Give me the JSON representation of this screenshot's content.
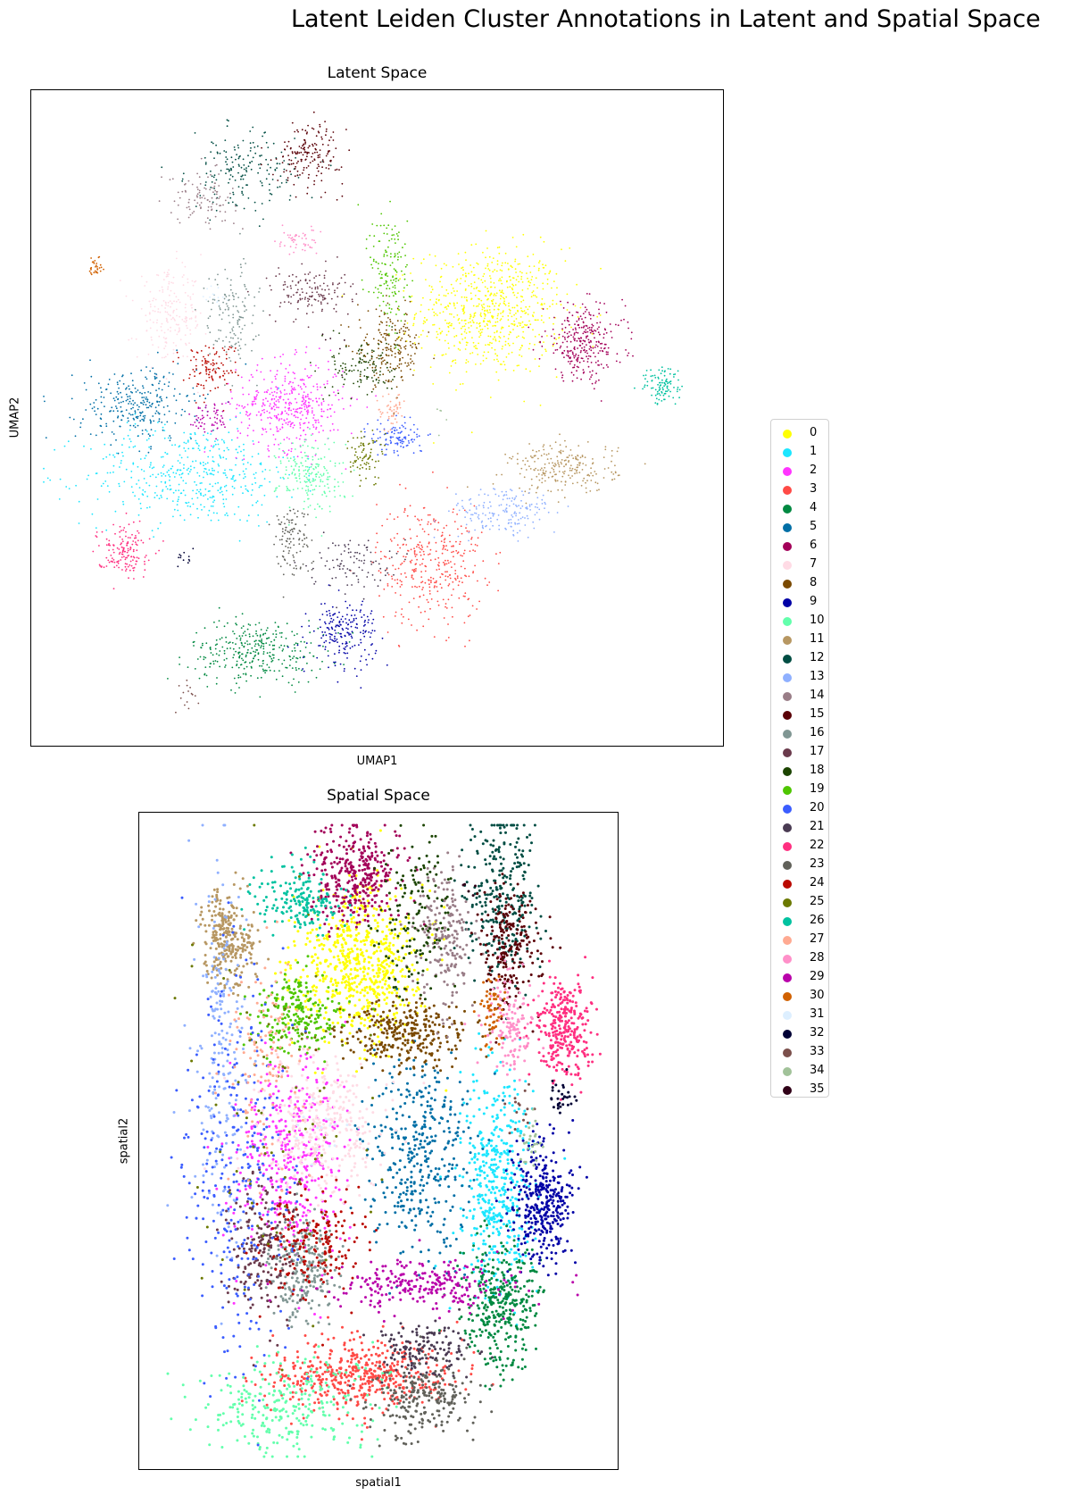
{
  "title": "Latent Leiden Cluster Annotations in Latent and Spatial Space",
  "chart_data": [
    {
      "type": "scatter",
      "title": "Latent Space",
      "xlabel": "UMAP1",
      "ylabel": "UMAP2",
      "ticks": "none",
      "grid": false,
      "xlim": [
        0,
        100
      ],
      "ylim": [
        0,
        100
      ],
      "note": "approximate cluster centers (UMAP1, UMAP2) and spread; axes unlabeled",
      "clusters": [
        {
          "id": 0,
          "x": 67,
          "y": 67,
          "sx": 5.5,
          "sy": 5,
          "n": 700
        },
        {
          "id": 1,
          "x": 22,
          "y": 41,
          "sx": 8,
          "sy": 4,
          "n": 450
        },
        {
          "id": 2,
          "x": 37,
          "y": 52,
          "sx": 4,
          "sy": 3.5,
          "n": 420
        },
        {
          "id": 3,
          "x": 58,
          "y": 27,
          "sx": 4,
          "sy": 5,
          "n": 350
        },
        {
          "id": 4,
          "x": 32,
          "y": 13,
          "sx": 5,
          "sy": 2.5,
          "n": 320
        },
        {
          "id": 5,
          "x": 14,
          "y": 52,
          "sx": 4.5,
          "sy": 3,
          "n": 280
        },
        {
          "id": 6,
          "x": 81,
          "y": 62,
          "sx": 3,
          "sy": 3,
          "n": 300
        },
        {
          "id": 7,
          "x": 19,
          "y": 66,
          "sx": 2.5,
          "sy": 3.5,
          "n": 200
        },
        {
          "id": 8,
          "x": 52,
          "y": 61,
          "sx": 2.5,
          "sy": 3,
          "n": 200
        },
        {
          "id": 9,
          "x": 45,
          "y": 16,
          "sx": 2.5,
          "sy": 2.5,
          "n": 200
        },
        {
          "id": 10,
          "x": 40,
          "y": 41,
          "sx": 2.5,
          "sy": 3,
          "n": 200
        },
        {
          "id": 11,
          "x": 78,
          "y": 42,
          "sx": 4,
          "sy": 2,
          "n": 230
        },
        {
          "id": 12,
          "x": 30,
          "y": 89,
          "sx": 4,
          "sy": 3,
          "n": 180
        },
        {
          "id": 13,
          "x": 69,
          "y": 35,
          "sx": 4,
          "sy": 2,
          "n": 170
        },
        {
          "id": 14,
          "x": 24,
          "y": 85,
          "sx": 2.5,
          "sy": 2,
          "n": 100
        },
        {
          "id": 15,
          "x": 40,
          "y": 92,
          "sx": 2.5,
          "sy": 2.5,
          "n": 170
        },
        {
          "id": 16,
          "x": 28,
          "y": 66,
          "sx": 2,
          "sy": 4,
          "n": 140
        },
        {
          "id": 17,
          "x": 40,
          "y": 70,
          "sx": 3,
          "sy": 2,
          "n": 140
        },
        {
          "id": 18,
          "x": 48,
          "y": 58,
          "sx": 2.5,
          "sy": 2.5,
          "n": 120
        },
        {
          "id": 19,
          "x": 52,
          "y": 73,
          "sx": 1.5,
          "sy": 5,
          "n": 150
        },
        {
          "id": 20,
          "x": 53,
          "y": 47,
          "sx": 2,
          "sy": 1.5,
          "n": 110
        },
        {
          "id": 21,
          "x": 46,
          "y": 27,
          "sx": 3,
          "sy": 2,
          "n": 100
        },
        {
          "id": 22,
          "x": 12,
          "y": 29,
          "sx": 2,
          "sy": 2,
          "n": 150
        },
        {
          "id": 23,
          "x": 37,
          "y": 31,
          "sx": 1.5,
          "sy": 3,
          "n": 110
        },
        {
          "id": 24,
          "x": 25,
          "y": 58,
          "sx": 2,
          "sy": 2,
          "n": 110
        },
        {
          "id": 25,
          "x": 48,
          "y": 44,
          "sx": 1.5,
          "sy": 2,
          "n": 80
        },
        {
          "id": 26,
          "x": 93,
          "y": 55,
          "sx": 1.5,
          "sy": 1.5,
          "n": 100
        },
        {
          "id": 27,
          "x": 52,
          "y": 51,
          "sx": 1,
          "sy": 1.5,
          "n": 50
        },
        {
          "id": 28,
          "x": 38,
          "y": 78,
          "sx": 1.5,
          "sy": 1,
          "n": 50
        },
        {
          "id": 29,
          "x": 25,
          "y": 50,
          "sx": 1.5,
          "sy": 1.5,
          "n": 60
        },
        {
          "id": 30,
          "x": 8,
          "y": 74,
          "sx": 0.6,
          "sy": 1,
          "n": 30
        },
        {
          "id": 31,
          "x": 26,
          "y": 69,
          "sx": 1,
          "sy": 1,
          "n": 15
        },
        {
          "id": 32,
          "x": 21,
          "y": 28,
          "sx": 0.6,
          "sy": 0.6,
          "n": 12
        },
        {
          "id": 33,
          "x": 22,
          "y": 6,
          "sx": 1,
          "sy": 1.5,
          "n": 15
        },
        {
          "id": 34,
          "x": 60,
          "y": 50,
          "sx": 1,
          "sy": 1,
          "n": 5
        },
        {
          "id": 35,
          "x": 43,
          "y": 62,
          "sx": 1,
          "sy": 1,
          "n": 5
        }
      ]
    },
    {
      "type": "scatter",
      "title": "Spatial Space",
      "xlabel": "spatial1",
      "ylabel": "spatial2",
      "ticks": "none",
      "grid": false,
      "xlim": [
        0,
        100
      ],
      "ylim": [
        0,
        100
      ],
      "note": "approximate cluster centers (spatial1, spatial2) and spread; axes unlabeled",
      "clusters": [
        {
          "id": 0,
          "x": 46,
          "y": 78,
          "sx": 7,
          "sy": 6,
          "n": 650
        },
        {
          "id": 1,
          "x": 76,
          "y": 43,
          "sx": 4,
          "sy": 9,
          "n": 450
        },
        {
          "id": 2,
          "x": 30,
          "y": 48,
          "sx": 6,
          "sy": 8,
          "n": 380
        },
        {
          "id": 3,
          "x": 46,
          "y": 13,
          "sx": 10,
          "sy": 3,
          "n": 500
        },
        {
          "id": 4,
          "x": 77,
          "y": 24,
          "sx": 4,
          "sy": 5,
          "n": 350
        },
        {
          "id": 5,
          "x": 59,
          "y": 48,
          "sx": 6,
          "sy": 8,
          "n": 380
        },
        {
          "id": 6,
          "x": 45,
          "y": 92,
          "sx": 5,
          "sy": 4,
          "n": 350
        },
        {
          "id": 7,
          "x": 37,
          "y": 53,
          "sx": 7,
          "sy": 6,
          "n": 330
        },
        {
          "id": 8,
          "x": 55,
          "y": 67,
          "sx": 7,
          "sy": 2.5,
          "n": 300
        },
        {
          "id": 9,
          "x": 86,
          "y": 40,
          "sx": 3.5,
          "sy": 5,
          "n": 350
        },
        {
          "id": 10,
          "x": 30,
          "y": 8,
          "sx": 10,
          "sy": 4,
          "n": 280
        },
        {
          "id": 11,
          "x": 17,
          "y": 82,
          "sx": 3,
          "sy": 4,
          "n": 280
        },
        {
          "id": 12,
          "x": 77,
          "y": 88,
          "sx": 4,
          "sy": 7,
          "n": 280
        },
        {
          "id": 13,
          "x": 15,
          "y": 63,
          "sx": 3,
          "sy": 14,
          "n": 200
        },
        {
          "id": 14,
          "x": 65,
          "y": 82,
          "sx": 3,
          "sy": 6,
          "n": 200
        },
        {
          "id": 15,
          "x": 79,
          "y": 81,
          "sx": 3,
          "sy": 5,
          "n": 220
        },
        {
          "id": 16,
          "x": 33,
          "y": 30,
          "sx": 4,
          "sy": 4,
          "n": 250
        },
        {
          "id": 17,
          "x": 24,
          "y": 33,
          "sx": 4,
          "sy": 6,
          "n": 200
        },
        {
          "id": 18,
          "x": 58,
          "y": 85,
          "sx": 4,
          "sy": 6,
          "n": 150
        },
        {
          "id": 19,
          "x": 32,
          "y": 70,
          "sx": 5,
          "sy": 3,
          "n": 220
        },
        {
          "id": 20,
          "x": 19,
          "y": 45,
          "sx": 6,
          "sy": 16,
          "n": 300
        },
        {
          "id": 21,
          "x": 60,
          "y": 17,
          "sx": 5,
          "sy": 2,
          "n": 150
        },
        {
          "id": 22,
          "x": 91,
          "y": 68,
          "sx": 3.5,
          "sy": 4,
          "n": 300
        },
        {
          "id": 23,
          "x": 60,
          "y": 9,
          "sx": 6,
          "sy": 3,
          "n": 230
        },
        {
          "id": 24,
          "x": 36,
          "y": 34,
          "sx": 6,
          "sy": 4,
          "n": 200
        },
        {
          "id": 25,
          "x": 28,
          "y": 55,
          "sx": 10,
          "sy": 15,
          "n": 80
        },
        {
          "id": 26,
          "x": 32,
          "y": 88,
          "sx": 5,
          "sy": 2.5,
          "n": 180
        },
        {
          "id": 27,
          "x": 25,
          "y": 62,
          "sx": 4,
          "sy": 9,
          "n": 120
        },
        {
          "id": 28,
          "x": 79,
          "y": 68,
          "sx": 3,
          "sy": 4,
          "n": 130
        },
        {
          "id": 29,
          "x": 60,
          "y": 27,
          "sx": 10,
          "sy": 2,
          "n": 250
        },
        {
          "id": 30,
          "x": 75,
          "y": 70,
          "sx": 1.5,
          "sy": 3,
          "n": 60
        },
        {
          "id": 31,
          "x": 38,
          "y": 52,
          "sx": 3,
          "sy": 3,
          "n": 15
        },
        {
          "id": 32,
          "x": 90,
          "y": 57,
          "sx": 1.5,
          "sy": 1.5,
          "n": 30
        },
        {
          "id": 33,
          "x": 82,
          "y": 55,
          "sx": 1.5,
          "sy": 2,
          "n": 15
        },
        {
          "id": 34,
          "x": 84,
          "y": 50,
          "sx": 1.5,
          "sy": 2,
          "n": 25
        },
        {
          "id": 35,
          "x": 70,
          "y": 90,
          "sx": 1,
          "sy": 1,
          "n": 5
        }
      ]
    }
  ],
  "legend": {
    "placement": "right",
    "items": [
      {
        "label": "0",
        "color": "#ffff00"
      },
      {
        "label": "1",
        "color": "#1ce6ff"
      },
      {
        "label": "2",
        "color": "#ff34ff"
      },
      {
        "label": "3",
        "color": "#ff4a46"
      },
      {
        "label": "4",
        "color": "#008941"
      },
      {
        "label": "5",
        "color": "#006fa6"
      },
      {
        "label": "6",
        "color": "#a30059"
      },
      {
        "label": "7",
        "color": "#ffdbe5"
      },
      {
        "label": "8",
        "color": "#7a4900"
      },
      {
        "label": "9",
        "color": "#0000a6"
      },
      {
        "label": "10",
        "color": "#63ffac"
      },
      {
        "label": "11",
        "color": "#b79762"
      },
      {
        "label": "12",
        "color": "#004d43"
      },
      {
        "label": "13",
        "color": "#8fb0ff"
      },
      {
        "label": "14",
        "color": "#997d87"
      },
      {
        "label": "15",
        "color": "#5a0007"
      },
      {
        "label": "16",
        "color": "#809693"
      },
      {
        "label": "17",
        "color": "#6a3a4c"
      },
      {
        "label": "18",
        "color": "#1b4400"
      },
      {
        "label": "19",
        "color": "#4fc601"
      },
      {
        "label": "20",
        "color": "#3b5dff"
      },
      {
        "label": "21",
        "color": "#4a3b53"
      },
      {
        "label": "22",
        "color": "#ff2f80"
      },
      {
        "label": "23",
        "color": "#61615a"
      },
      {
        "label": "24",
        "color": "#ba0900"
      },
      {
        "label": "25",
        "color": "#6b7900"
      },
      {
        "label": "26",
        "color": "#00c2a0"
      },
      {
        "label": "27",
        "color": "#ffaa92"
      },
      {
        "label": "28",
        "color": "#ff90c9"
      },
      {
        "label": "29",
        "color": "#b903aa"
      },
      {
        "label": "30",
        "color": "#d16100"
      },
      {
        "label": "31",
        "color": "#ddefff"
      },
      {
        "label": "32",
        "color": "#000035"
      },
      {
        "label": "33",
        "color": "#7b4f4b"
      },
      {
        "label": "34",
        "color": "#a1c299"
      },
      {
        "label": "35",
        "color": "#300018"
      }
    ]
  }
}
